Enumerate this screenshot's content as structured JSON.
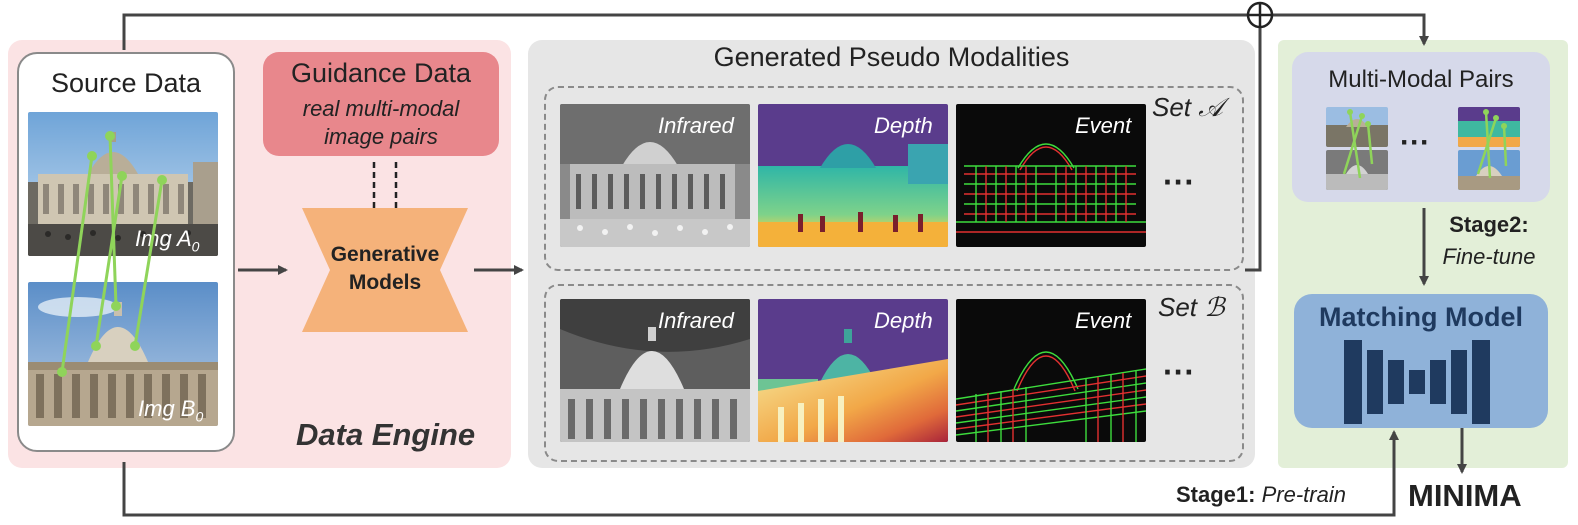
{
  "source": {
    "title": "Source Data",
    "img_a_label_prefix": "Img A",
    "img_a_label_sub": "0",
    "img_b_label_prefix": "Img B",
    "img_b_label_sub": "0"
  },
  "guidance": {
    "title": "Guidance Data",
    "line1": "real multi-modal",
    "line2": "image pairs"
  },
  "generative": {
    "line1": "Generative",
    "line2": "Models"
  },
  "engine": {
    "label": "Data Engine"
  },
  "pseudo": {
    "title": "Generated Pseudo Modalities",
    "set_a": "Set 𝒜",
    "set_b": "Set ℬ",
    "modalities": [
      "Infrared",
      "Depth",
      "Event"
    ],
    "ellipsis": "···"
  },
  "pairs": {
    "title": "Multi-Modal Pairs",
    "ellipsis": "···"
  },
  "stage2": {
    "bold": "Stage2:",
    "italic": "Fine-tune"
  },
  "matching": {
    "title": "Matching Model"
  },
  "stage1": {
    "bold": "Stage1:",
    "italic": "Pre-train"
  },
  "minima": {
    "label": "MINIMA"
  },
  "colors": {
    "engine_bg": "#fbe3e4",
    "guidance_bg": "#e8878c",
    "generative": "#f5b27a",
    "pseudo_bg": "#e6e6e6",
    "right_bg": "#e3efd8",
    "pairs_bg": "#d6d9ea",
    "matching_bg": "#8fb2d9",
    "matching_bars": "#1f3a5f",
    "match_lines": "#8fd45a",
    "arrow": "#444444"
  }
}
